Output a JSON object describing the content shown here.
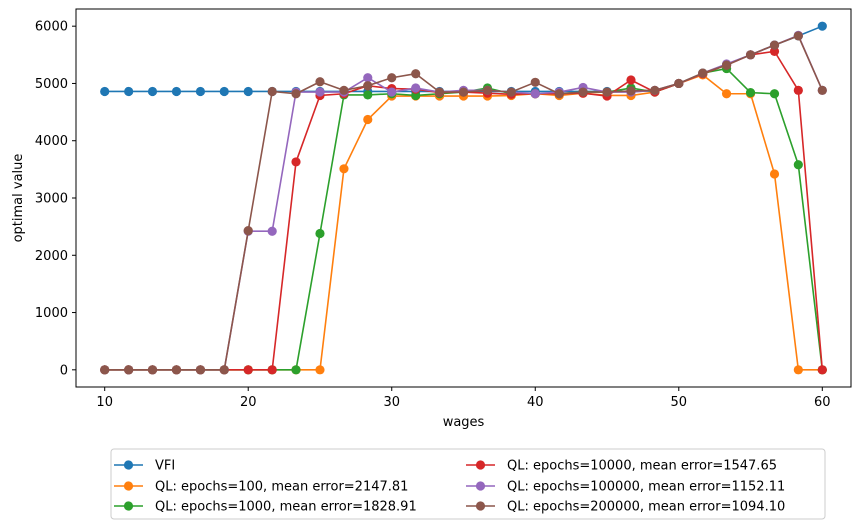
{
  "chart_data": {
    "type": "line",
    "title": "",
    "xlabel": "wages",
    "ylabel": "optimal value",
    "xlim": [
      8,
      62
    ],
    "ylim": [
      -300,
      6300
    ],
    "x_ticks": [
      "10",
      "20",
      "30",
      "40",
      "50",
      "60"
    ],
    "y_ticks": [
      "0",
      "1000",
      "2000",
      "3000",
      "4000",
      "5000",
      "6000"
    ],
    "x_tick_values": [
      10,
      20,
      30,
      40,
      50,
      60
    ],
    "y_tick_values": [
      0,
      1000,
      2000,
      3000,
      4000,
      5000,
      6000
    ],
    "grid": false,
    "legend_position": "bottom-center",
    "x": [
      10.0,
      11.67,
      13.33,
      15.0,
      16.67,
      18.33,
      20.0,
      21.67,
      23.33,
      25.0,
      26.67,
      28.33,
      30.0,
      31.67,
      33.33,
      35.0,
      36.67,
      38.33,
      40.0,
      41.67,
      43.33,
      45.0,
      46.67,
      48.33,
      50.0,
      51.67,
      53.33,
      55.0,
      56.67,
      58.33,
      60.0
    ],
    "series": [
      {
        "name": "VFI",
        "color": "#1f77b4",
        "values": [
          4860,
          4860,
          4860,
          4860,
          4860,
          4860,
          4860,
          4860,
          4860,
          4860,
          4860,
          4860,
          4860,
          4860,
          4860,
          4860,
          4860,
          4860,
          4860,
          4860,
          4860,
          4860,
          4860,
          4870,
          5000,
          5160,
          5330,
          5500,
          5670,
          5830,
          6000
        ]
      },
      {
        "name": "QL: epochs=100, mean error=2147.81",
        "color": "#ff7f0e",
        "values": [
          0,
          0,
          0,
          0,
          0,
          0,
          0,
          0,
          0,
          0,
          3510,
          4370,
          4780,
          4780,
          4780,
          4780,
          4780,
          4790,
          4820,
          4790,
          4830,
          4790,
          4790,
          4850,
          5000,
          5150,
          4820,
          4820,
          3420,
          0,
          0
        ]
      },
      {
        "name": "QL: epochs=1000, mean error=1828.91",
        "color": "#2ca02c",
        "values": [
          0,
          0,
          0,
          0,
          0,
          0,
          0,
          0,
          0,
          2380,
          4800,
          4800,
          4820,
          4790,
          4820,
          4850,
          4920,
          4820,
          4820,
          4820,
          4850,
          4850,
          4920,
          4850,
          5000,
          5180,
          5260,
          4840,
          4820,
          3580,
          0
        ]
      },
      {
        "name": "QL: epochs=10000, mean error=1547.65",
        "color": "#d62728",
        "values": [
          0,
          0,
          0,
          0,
          0,
          0,
          0,
          0,
          3630,
          4790,
          4820,
          4960,
          4910,
          4900,
          4840,
          4850,
          4830,
          4810,
          4820,
          4820,
          4830,
          4780,
          5060,
          4850,
          5000,
          5170,
          5320,
          5500,
          5560,
          4880,
          0
        ]
      },
      {
        "name": "QL: epochs=100000, mean error=1152.11",
        "color": "#9467bd",
        "values": [
          0,
          0,
          0,
          0,
          0,
          0,
          2420,
          2420,
          4850,
          4850,
          4850,
          5100,
          4850,
          4920,
          4850,
          4880,
          4880,
          4850,
          4820,
          4850,
          4930,
          4850,
          4850,
          4880,
          5000,
          5180,
          5340,
          5500,
          5670,
          5840,
          4880
        ]
      },
      {
        "name": "QL: epochs=200000, mean error=1094.10",
        "color": "#8c564b",
        "values": [
          0,
          0,
          0,
          0,
          0,
          0,
          2430,
          4860,
          4820,
          5030,
          4880,
          4960,
          5100,
          5170,
          4850,
          4850,
          4880,
          4850,
          5020,
          4820,
          4850,
          4850,
          4870,
          4880,
          5000,
          5180,
          5320,
          5500,
          5670,
          5830,
          4880
        ]
      }
    ]
  }
}
